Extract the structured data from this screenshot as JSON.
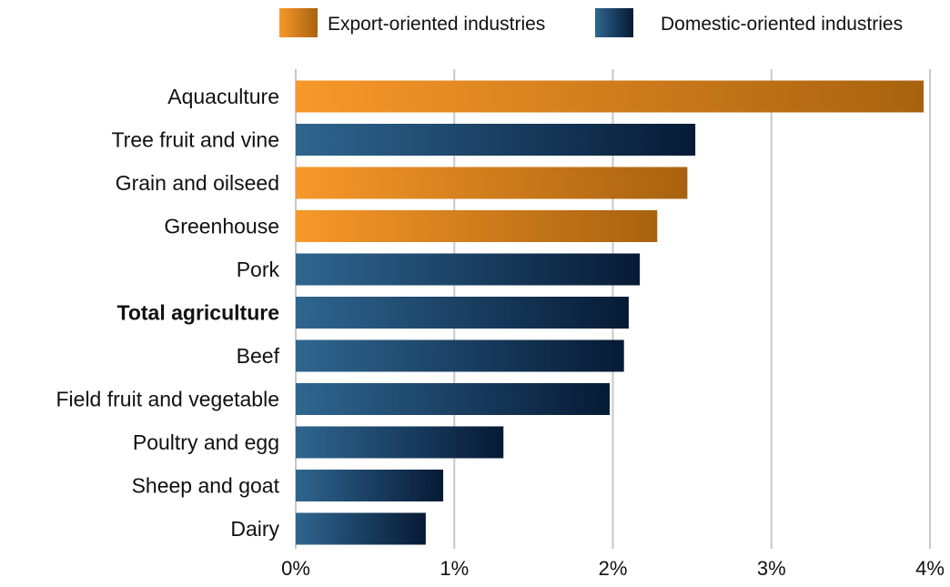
{
  "chart_data": {
    "type": "bar",
    "orientation": "horizontal",
    "title": "",
    "xlabel": "",
    "ylabel": "",
    "xlim": [
      0,
      4
    ],
    "x_ticks": [
      0,
      1,
      2,
      3,
      4
    ],
    "x_tick_labels": [
      "0%",
      "1%",
      "2%",
      "3%",
      "4%"
    ],
    "grid": "vertical",
    "legend_position": "top-right",
    "legend": [
      {
        "label": "Export-oriented industries",
        "color": "#e8922a",
        "group": "export"
      },
      {
        "label": "Domestic-oriented industries",
        "color": "#1e4e78",
        "group": "domestic"
      }
    ],
    "categories": [
      "Aquaculture",
      "Tree fruit and vine",
      "Grain and oilseed",
      "Greenhouse",
      "Pork",
      "Total agriculture",
      "Beef",
      "Field fruit and vegetable",
      "Poultry and egg",
      "Sheep and goat",
      "Dairy"
    ],
    "values": [
      3.96,
      2.52,
      2.47,
      2.28,
      2.17,
      2.1,
      2.07,
      1.98,
      1.31,
      0.93,
      0.82
    ],
    "groups": [
      "export",
      "domestic",
      "export",
      "export",
      "domestic",
      "domestic",
      "domestic",
      "domestic",
      "domestic",
      "domestic",
      "domestic"
    ],
    "bold_categories": [
      "Total agriculture"
    ],
    "colors": {
      "export_start": "#f7982a",
      "export_end": "#a8620f",
      "domestic_start": "#2f6690",
      "domestic_end": "#061a35",
      "grid": "#c8c8c8",
      "text": "#111111"
    }
  }
}
